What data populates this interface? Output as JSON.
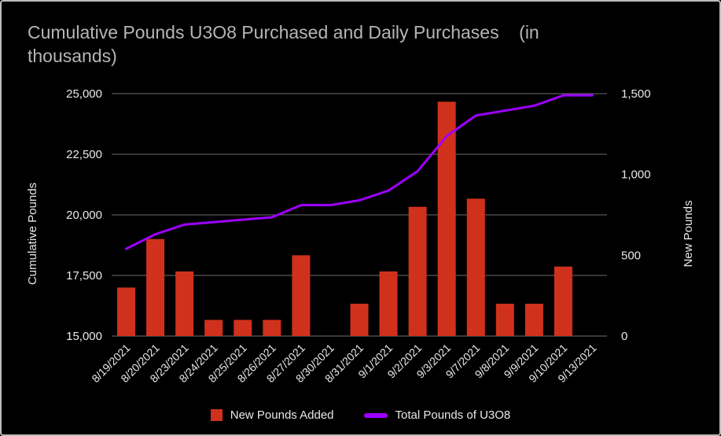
{
  "title": "Cumulative Pounds U3O8 Purchased and Daily Purchases    (in thousands)",
  "colors": {
    "background": "#000000",
    "border": "#bdbdbd",
    "grid": "#6e6e6e",
    "axis_text": "#e8e8e8",
    "title_text": "#b5b5b5",
    "bar": "#d0311d",
    "line": "#9d00ff"
  },
  "chart_data": {
    "type": "bar",
    "subtype": "combo-bar-line-dual-axis",
    "title": "Cumulative Pounds U3O8 Purchased and Daily Purchases    (in thousands)",
    "categories": [
      "8/19/2021",
      "8/20/2021",
      "8/23/2021",
      "8/24/2021",
      "8/25/2021",
      "8/26/2021",
      "8/27/2021",
      "8/30/2021",
      "8/31/2021",
      "9/1/2021",
      "9/2/2021",
      "9/3/2021",
      "9/7/2021",
      "9/8/2021",
      "9/9/2021",
      "9/10/2021",
      "9/13/2021"
    ],
    "series": [
      {
        "name": "New Pounds Added",
        "type": "bar",
        "axis": "right",
        "color": "#d0311d",
        "values": [
          300,
          600,
          400,
          100,
          100,
          100,
          500,
          0,
          200,
          400,
          800,
          1450,
          850,
          200,
          200,
          430,
          0
        ]
      },
      {
        "name": "Total Pounds of U3O8",
        "type": "line",
        "axis": "left",
        "color": "#9d00ff",
        "values": [
          18600,
          19200,
          19600,
          19700,
          19800,
          19900,
          20400,
          20400,
          20600,
          21000,
          21800,
          23250,
          24100,
          24300,
          24500,
          24930,
          24930
        ]
      }
    ],
    "left_axis": {
      "label": "Cumulative Pounds",
      "min": 15000,
      "max": 25000,
      "ticks": [
        15000,
        17500,
        20000,
        22500,
        25000
      ],
      "tick_labels": [
        "15,000",
        "17,500",
        "20,000",
        "22,500",
        "25,000"
      ]
    },
    "right_axis": {
      "label": "New Pounds",
      "min": 0,
      "max": 1500,
      "ticks": [
        0,
        500,
        1000,
        1500
      ],
      "tick_labels": [
        "0",
        "500",
        "1,000",
        "1,500"
      ]
    },
    "grid": true,
    "legend_position": "bottom"
  }
}
